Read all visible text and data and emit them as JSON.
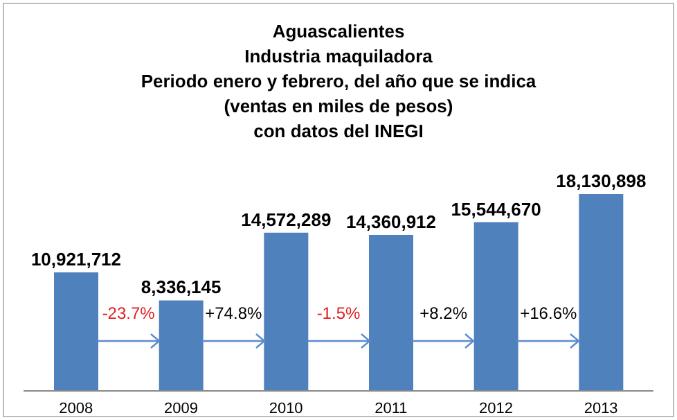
{
  "chart_data": {
    "type": "bar",
    "title": "Aguascalientes",
    "subtitle": "Industria maquiladora\nPeriodo enero y febrero, del año que se indica\n(ventas en miles de pesos)\ncon datos del INEGI",
    "categories": [
      "2008",
      "2009",
      "2010",
      "2011",
      "2012",
      "2013"
    ],
    "values": [
      10921712,
      8336145,
      14572289,
      14360912,
      15544670,
      18130898
    ],
    "value_labels": [
      "10,921,712",
      "8,336,145",
      "14,572,289",
      "14,360,912",
      "15,544,670",
      "18,130,898"
    ],
    "color": "#4f81bd",
    "annotations": [
      "-23.7%",
      "+74.8%",
      "-1.5%",
      "+8.2%",
      "+16.6%"
    ]
  }
}
